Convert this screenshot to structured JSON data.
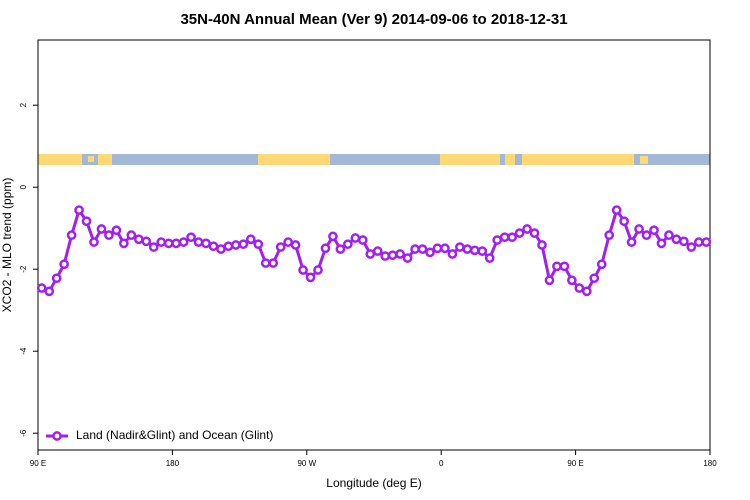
{
  "chart_data": {
    "type": "line",
    "title": "35N-40N Annual Mean (Ver 9)   2014-09-06 to 2018-12-31",
    "xlabel": "Longitude (deg E)",
    "ylabel": "XCO2 - MLO trend (ppm)",
    "x": [
      92.5,
      97.5,
      102.5,
      107.5,
      112.5,
      117.5,
      122.5,
      127.5,
      132.5,
      137.5,
      142.5,
      147.5,
      152.5,
      157.5,
      162.5,
      167.5,
      172.5,
      177.5,
      182.5,
      187.5,
      192.5,
      197.5,
      202.5,
      207.5,
      212.5,
      217.5,
      222.5,
      227.5,
      232.5,
      237.5,
      242.5,
      247.5,
      252.5,
      257.5,
      262.5,
      267.5,
      272.5,
      277.5,
      282.5,
      287.5,
      292.5,
      297.5,
      302.5,
      307.5,
      312.5,
      317.5,
      322.5,
      327.5,
      332.5,
      337.5,
      342.5,
      347.5,
      352.5,
      357.5,
      362.5,
      367.5,
      372.5,
      377.5,
      382.5,
      387.5,
      392.5,
      397.5,
      402.5,
      407.5,
      412.5,
      417.5,
      422.5,
      427.5,
      432.5,
      437.5,
      442.5,
      447.5,
      452.5,
      457.5,
      462.5,
      467.5,
      472.5,
      477.5,
      482.5,
      487.5,
      492.5,
      497.5,
      502.5,
      507.5,
      512.5,
      517.5,
      522.5,
      527.5,
      532.5,
      537.5
    ],
    "series": [
      {
        "name": "Land (Nadir&Glint) and Ocean (Glint)",
        "color": "#a020f0",
        "values": [
          -2.46,
          -2.54,
          -2.22,
          -1.88,
          -1.17,
          -0.56,
          -0.83,
          -1.34,
          -1.02,
          -1.17,
          -1.05,
          -1.37,
          -1.17,
          -1.27,
          -1.32,
          -1.46,
          -1.34,
          -1.37,
          -1.37,
          -1.34,
          -1.22,
          -1.34,
          -1.37,
          -1.44,
          -1.51,
          -1.44,
          -1.41,
          -1.39,
          -1.27,
          -1.39,
          -1.85,
          -1.85,
          -1.46,
          -1.34,
          -1.41,
          -2.02,
          -2.2,
          -2.02,
          -1.49,
          -1.2,
          -1.51,
          -1.39,
          -1.24,
          -1.29,
          -1.63,
          -1.56,
          -1.68,
          -1.66,
          -1.63,
          -1.73,
          -1.51,
          -1.51,
          -1.59,
          -1.49,
          -1.49,
          -1.63,
          -1.46,
          -1.51,
          -1.54,
          -1.56,
          -1.73,
          -1.29,
          -1.22,
          -1.22,
          -1.12,
          -1.02,
          -1.12,
          -1.41,
          -2.27,
          -1.93,
          -1.93,
          -2.27,
          -2.46,
          -2.54,
          -2.22,
          -1.88,
          -1.17,
          -0.56,
          -0.83,
          -1.34,
          -1.02,
          -1.17,
          -1.05,
          -1.37,
          -1.17,
          -1.27,
          -1.32,
          -1.46,
          -1.34,
          -1.34
        ]
      }
    ],
    "xlim": [
      90,
      540
    ],
    "xticks": [
      {
        "value": 90,
        "label": "90 E"
      },
      180,
      {
        "value": 270,
        "label": "90 W"
      },
      {
        "value": 360,
        "label": "0"
      },
      {
        "value": 450,
        "label": "90 E"
      },
      {
        "value": 540,
        "label": "180"
      }
    ],
    "ylim": [
      -6.41,
      3.59
    ],
    "yticks": [
      -6,
      -4,
      -2,
      0,
      2
    ],
    "legend": "bottom-left"
  }
}
